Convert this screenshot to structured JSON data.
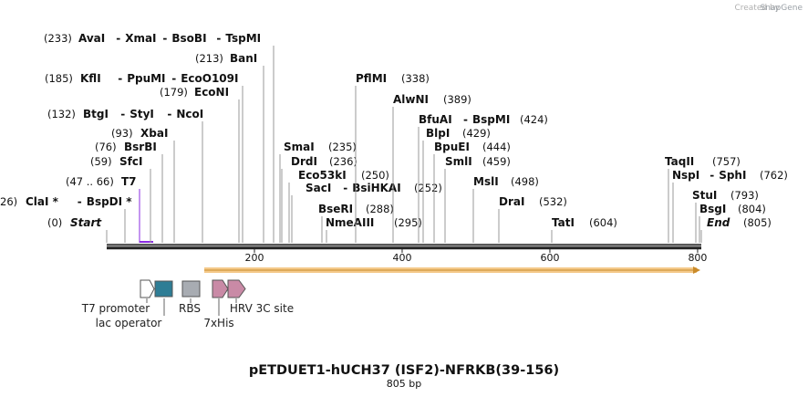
{
  "watermark": {
    "credit": "Created by",
    "brand": "SnapGene"
  },
  "title": "pETDUET1-hUCH37 (ISF2)-NFRKB(39-156)",
  "length": "805 bp",
  "sequence_length": 805,
  "ruler_ticks": [
    "200",
    "400",
    "600",
    "800"
  ],
  "features": {
    "t7_promoter": "T7 promoter",
    "lac_operator": "lac operator",
    "rbs": "RBS",
    "his_tag": "7xHis",
    "hrv_3c_site": "HRV 3C site"
  },
  "colors": {
    "site_line": "#999999",
    "primer": "#8a2be2",
    "orf_fill": "#f4c98a",
    "orf_edge": "#c98a2a",
    "lac_operator": "#2e7d95",
    "rbs": "#a8acb2",
    "tag": "#c98aa6"
  },
  "sites": [
    {
      "id": "bgtI",
      "pos_text": "(132)",
      "labels": [
        {
          "name": "BtgI",
          "dash": false,
          "anchor_pos": 132
        },
        {
          "name": "StyI",
          "dash": true,
          "anchor_pos": 132
        },
        {
          "name": "NcoI",
          "dash": true,
          "anchor_pos": 132
        }
      ]
    },
    {
      "id": "start",
      "pos_text": "(0)",
      "labels": [
        {
          "name": "Start",
          "dash": false,
          "italic": true,
          "anchor_pos": 0
        }
      ]
    },
    {
      "id": "clai",
      "pos_text": "26)",
      "labels": [
        {
          "name": "ClaI *",
          "dash": false,
          "anchor_pos": 26
        },
        {
          "name": "BspDI *",
          "dash": true,
          "anchor_pos": 26
        }
      ]
    },
    {
      "id": "t7",
      "pos_text": "(47 .. 66)",
      "labels": [
        {
          "name": "T7",
          "dash": false,
          "color": "#8a2be2",
          "anchor_pos": 47
        }
      ]
    },
    {
      "id": "sfci",
      "pos_text": "(59)",
      "labels": [
        {
          "name": "SfcI",
          "dash": false,
          "anchor_pos": 59
        }
      ]
    },
    {
      "id": "bsrbi",
      "pos_text": "(76)",
      "labels": [
        {
          "name": "BsrBI",
          "dash": false,
          "anchor_pos": 76
        }
      ]
    },
    {
      "id": "xbai",
      "pos_text": "(93)",
      "labels": [
        {
          "name": "XbaI",
          "dash": false,
          "anchor_pos": 93
        }
      ]
    },
    {
      "id": "econi",
      "pos_text": "(179)",
      "labels": [
        {
          "name": "EcoNI",
          "dash": false,
          "anchor_pos": 179
        }
      ]
    },
    {
      "id": "kfli",
      "pos_text": "(185)",
      "labels": [
        {
          "name": "KflI",
          "dash": false,
          "anchor_pos": 185
        },
        {
          "name": "PpuMI",
          "dash": true,
          "anchor_pos": 185
        },
        {
          "name": "EcoO109I",
          "dash": true,
          "anchor_pos": 185
        }
      ]
    },
    {
      "id": "bani",
      "pos_text": "(213)",
      "labels": [
        {
          "name": "BanI",
          "dash": false,
          "anchor_pos": 213
        }
      ]
    },
    {
      "id": "avai",
      "pos_text": "(233)",
      "labels": [
        {
          "name": "AvaI",
          "dash": false,
          "anchor_pos": 233
        },
        {
          "name": "XmaI",
          "dash": true,
          "anchor_pos": 233
        },
        {
          "name": "BsoBI",
          "dash": true,
          "anchor_pos": 233
        },
        {
          "name": "TspMI",
          "dash": true,
          "anchor_pos": 233
        }
      ]
    },
    {
      "id": "smai",
      "pos_text": "(235)",
      "labels": [
        {
          "name": "SmaI",
          "dash": false,
          "anchor_pos": 235
        }
      ]
    },
    {
      "id": "drdi",
      "pos_text": "(236)",
      "labels": [
        {
          "name": "DrdI",
          "dash": false,
          "anchor_pos": 236
        }
      ]
    },
    {
      "id": "eco53ki",
      "pos_text": "(250)",
      "labels": [
        {
          "name": "Eco53kI",
          "dash": false,
          "anchor_pos": 250
        }
      ]
    },
    {
      "id": "saci",
      "pos_text": "(252)",
      "labels": [
        {
          "name": "SacI",
          "dash": false,
          "anchor_pos": 252
        },
        {
          "name": "BsiHKAI",
          "dash": true,
          "anchor_pos": 252
        }
      ]
    },
    {
      "id": "bseri",
      "pos_text": "(288)",
      "labels": [
        {
          "name": "BseRI",
          "dash": false,
          "anchor_pos": 288
        }
      ]
    },
    {
      "id": "nmeaiii",
      "pos_text": "(295)",
      "labels": [
        {
          "name": "NmeAIII",
          "dash": false,
          "anchor_pos": 295
        }
      ]
    },
    {
      "id": "pflmi",
      "pos_text": "(338)",
      "labels": [
        {
          "name": "PflMI",
          "dash": false,
          "anchor_pos": 338
        }
      ]
    },
    {
      "id": "alwni",
      "pos_text": "(389)",
      "labels": [
        {
          "name": "AlwNI",
          "dash": false,
          "anchor_pos": 389
        }
      ]
    },
    {
      "id": "bfuai",
      "pos_text": "(424)",
      "labels": [
        {
          "name": "BfuAI",
          "dash": false,
          "anchor_pos": 424
        },
        {
          "name": "BspMI",
          "dash": true,
          "anchor_pos": 424
        }
      ]
    },
    {
      "id": "blpi",
      "pos_text": "(429)",
      "labels": [
        {
          "name": "BlpI",
          "dash": false,
          "anchor_pos": 429
        }
      ]
    },
    {
      "id": "bpuei",
      "pos_text": "(444)",
      "labels": [
        {
          "name": "BpuEI",
          "dash": false,
          "anchor_pos": 444
        }
      ]
    },
    {
      "id": "smli",
      "pos_text": "(459)",
      "labels": [
        {
          "name": "SmlI",
          "dash": false,
          "anchor_pos": 459
        }
      ]
    },
    {
      "id": "msli",
      "pos_text": "(498)",
      "labels": [
        {
          "name": "MslI",
          "dash": false,
          "anchor_pos": 498
        }
      ]
    },
    {
      "id": "drai",
      "pos_text": "(532)",
      "labels": [
        {
          "name": "DraI",
          "dash": false,
          "anchor_pos": 532
        }
      ]
    },
    {
      "id": "tati",
      "pos_text": "(604)",
      "labels": [
        {
          "name": "TatI",
          "dash": false,
          "anchor_pos": 604
        }
      ]
    },
    {
      "id": "taqii",
      "pos_text": "(757)",
      "labels": [
        {
          "name": "TaqII",
          "dash": false,
          "anchor_pos": 757
        }
      ]
    },
    {
      "id": "nspi",
      "pos_text": "(762)",
      "labels": [
        {
          "name": "NspI",
          "dash": false,
          "anchor_pos": 762
        },
        {
          "name": "SphI",
          "dash": true,
          "anchor_pos": 762
        }
      ]
    },
    {
      "id": "stui",
      "pos_text": "(793)",
      "labels": [
        {
          "name": "StuI",
          "dash": false,
          "anchor_pos": 793
        }
      ]
    },
    {
      "id": "bsgi",
      "pos_text": "(804)",
      "labels": [
        {
          "name": "BsgI",
          "dash": false,
          "anchor_pos": 804
        }
      ]
    },
    {
      "id": "end",
      "pos_text": "(805)",
      "labels": [
        {
          "name": "End",
          "dash": false,
          "italic": true,
          "anchor_pos": 805
        }
      ]
    }
  ]
}
